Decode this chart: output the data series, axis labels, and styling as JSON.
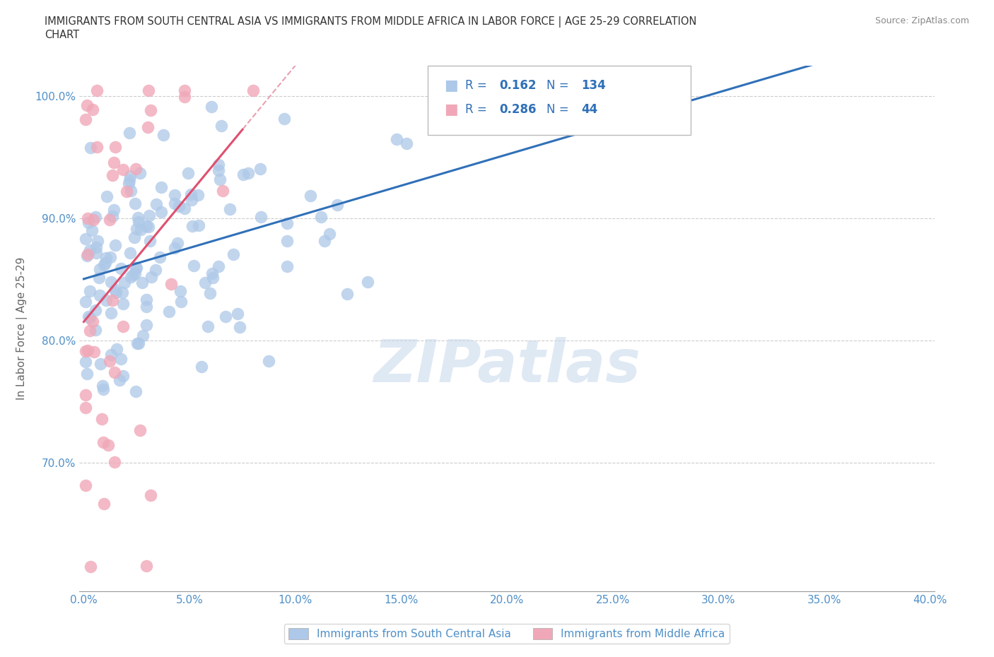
{
  "title_line1": "IMMIGRANTS FROM SOUTH CENTRAL ASIA VS IMMIGRANTS FROM MIDDLE AFRICA IN LABOR FORCE | AGE 25-29 CORRELATION",
  "title_line2": "CHART",
  "source_text": "Source: ZipAtlas.com",
  "ylabel": "In Labor Force | Age 25-29",
  "xlim": [
    -0.002,
    0.402
  ],
  "ylim": [
    0.595,
    1.025
  ],
  "yticks": [
    0.7,
    0.8,
    0.9,
    1.0
  ],
  "ytick_labels": [
    "70.0%",
    "80.0%",
    "90.0%",
    "100.0%"
  ],
  "xticks": [
    0.0,
    0.05,
    0.1,
    0.15,
    0.2,
    0.25,
    0.3,
    0.35,
    0.4
  ],
  "xtick_labels": [
    "0.0%",
    "",
    "",
    "",
    "",
    "",
    "",
    "",
    "40.0%"
  ],
  "blue_R": 0.162,
  "blue_N": 134,
  "pink_R": 0.286,
  "pink_N": 44,
  "blue_color": "#adc8e8",
  "pink_color": "#f0a8b8",
  "blue_line_color": "#3070b8",
  "pink_line_color": "#e05070",
  "pink_dash_color": "#e8a0b0",
  "tick_color": "#5090c8",
  "legend_label_blue": "Immigrants from South Central Asia",
  "legend_label_pink": "Immigrants from Middle Africa",
  "watermark": "ZIPatlas",
  "seed_blue": 7,
  "seed_pink": 99
}
